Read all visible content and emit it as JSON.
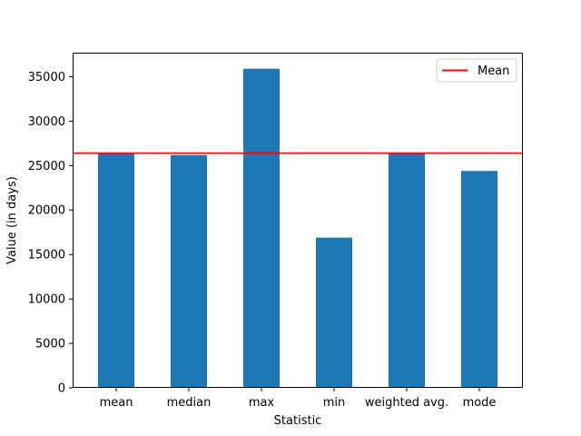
{
  "chart_data": {
    "type": "bar",
    "title": "",
    "xlabel": "Statistic",
    "ylabel": "Value (in days)",
    "categories": [
      "mean",
      "median",
      "max",
      "min",
      "weighted avg.",
      "mode"
    ],
    "values": [
      26400,
      26200,
      35900,
      16900,
      26400,
      24400
    ],
    "ylim": [
      0,
      37700
    ],
    "yticks": [
      0,
      5000,
      10000,
      15000,
      20000,
      25000,
      30000,
      35000
    ],
    "reference_line": {
      "name": "Mean",
      "value": 26400,
      "color": "#ff0000"
    },
    "bar_color": "#1f77b4",
    "grid": false,
    "legend": {
      "position": "top-right",
      "entries": [
        "Mean"
      ]
    }
  }
}
